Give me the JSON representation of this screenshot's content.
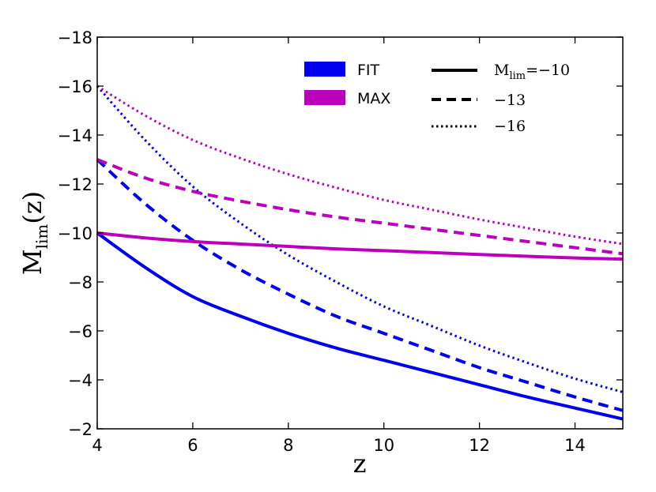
{
  "chart_data": {
    "type": "line",
    "title": "",
    "xlabel": "z",
    "ylabel": {
      "main": "M",
      "sub": "lim",
      "suffix": "(z)"
    },
    "xlim": [
      4,
      15
    ],
    "ylim": [
      -2,
      -18
    ],
    "y_inverted": true,
    "grid": false,
    "xticks": [
      4,
      6,
      8,
      10,
      12,
      14
    ],
    "yticks": [
      -2,
      -4,
      -6,
      -8,
      -10,
      -12,
      -14,
      -16,
      -18
    ],
    "xtick_labels": [
      "4",
      "6",
      "8",
      "10",
      "12",
      "14"
    ],
    "ytick_labels": [
      "−2",
      "−4",
      "−6",
      "−8",
      "−10",
      "−12",
      "−14",
      "−16",
      "−18"
    ],
    "colors": {
      "fit": "#0000ee",
      "max": "#bb00bb"
    },
    "series": [
      {
        "name": "FIT, Mlim=-10",
        "model": "FIT",
        "color": "#0000ee",
        "style": "solid",
        "x": [
          4,
          5,
          6,
          7,
          8,
          9,
          10,
          11,
          12,
          13,
          14,
          15
        ],
        "y": [
          -10.0,
          -8.6,
          -7.4,
          -6.6,
          -5.9,
          -5.3,
          -4.8,
          -4.3,
          -3.8,
          -3.3,
          -2.85,
          -2.4
        ]
      },
      {
        "name": "FIT, Mlim=-13",
        "model": "FIT",
        "color": "#0000ee",
        "style": "dashed",
        "x": [
          4,
          5,
          6,
          7,
          8,
          9,
          10,
          11,
          12,
          13,
          14,
          15
        ],
        "y": [
          -13.0,
          -11.2,
          -9.7,
          -8.5,
          -7.5,
          -6.6,
          -5.9,
          -5.2,
          -4.5,
          -3.9,
          -3.3,
          -2.75
        ]
      },
      {
        "name": "FIT, Mlim=-16",
        "model": "FIT",
        "color": "#0000ee",
        "style": "dotted",
        "x": [
          4,
          5,
          6,
          7,
          8,
          9,
          10,
          11,
          12,
          13,
          14,
          15
        ],
        "y": [
          -16.0,
          -13.8,
          -11.9,
          -10.4,
          -9.1,
          -8.0,
          -7.0,
          -6.2,
          -5.4,
          -4.7,
          -4.05,
          -3.5
        ]
      },
      {
        "name": "MAX, Mlim=-10",
        "model": "MAX",
        "color": "#bb00bb",
        "style": "solid",
        "x": [
          4,
          5,
          6,
          7,
          8,
          9,
          10,
          11,
          12,
          13,
          14,
          15
        ],
        "y": [
          -10.0,
          -9.8,
          -9.65,
          -9.55,
          -9.45,
          -9.35,
          -9.28,
          -9.2,
          -9.12,
          -9.05,
          -8.98,
          -8.93
        ]
      },
      {
        "name": "MAX, Mlim=-13",
        "model": "MAX",
        "color": "#bb00bb",
        "style": "dashed",
        "x": [
          4,
          5,
          6,
          7,
          8,
          9,
          10,
          11,
          12,
          13,
          14,
          15
        ],
        "y": [
          -13.0,
          -12.25,
          -11.7,
          -11.3,
          -10.95,
          -10.65,
          -10.4,
          -10.15,
          -9.9,
          -9.65,
          -9.4,
          -9.15
        ]
      },
      {
        "name": "MAX, Mlim=-16",
        "model": "MAX",
        "color": "#bb00bb",
        "style": "dotted",
        "x": [
          4,
          5,
          6,
          7,
          8,
          9,
          10,
          11,
          12,
          13,
          14,
          15
        ],
        "y": [
          -16.0,
          -14.8,
          -13.8,
          -13.05,
          -12.4,
          -11.85,
          -11.35,
          -10.95,
          -10.55,
          -10.2,
          -9.85,
          -9.55
        ]
      }
    ],
    "legend": {
      "placement": "top-right",
      "models": [
        {
          "label": "FIT",
          "color": "#0000ee"
        },
        {
          "label": "MAX",
          "color": "#bb00bb"
        }
      ],
      "styles": [
        {
          "style": "solid",
          "label_prefix": "M",
          "label_sub": "lim",
          "label_value": "=−10"
        },
        {
          "style": "dashed",
          "label": "−13"
        },
        {
          "style": "dotted",
          "label": "−16"
        }
      ]
    }
  }
}
